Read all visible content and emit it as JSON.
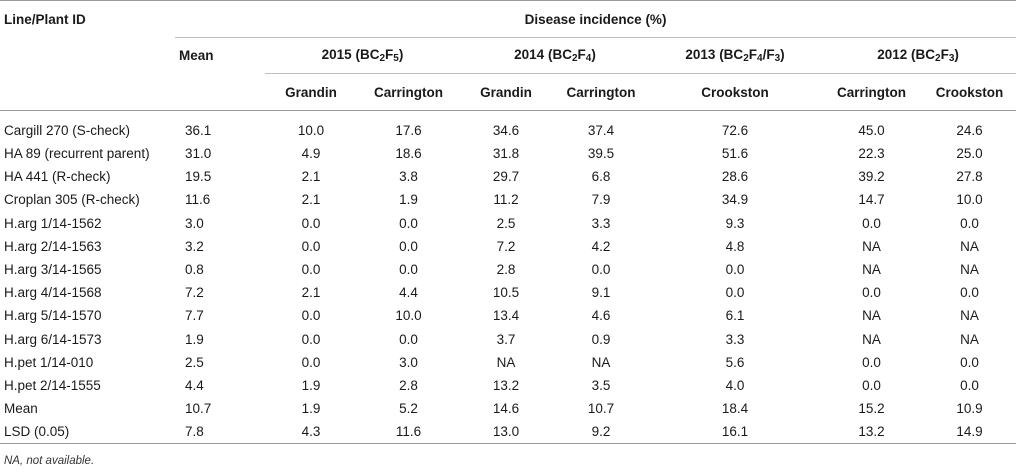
{
  "header": {
    "line_id": "Line/Plant ID",
    "disease_incidence": "Disease incidence (%)",
    "mean": "Mean",
    "groups": [
      {
        "year": "2015",
        "code_pre": "(BC",
        "sub1": "2",
        "mid": "F",
        "sub2": "5",
        "tail": ")"
      },
      {
        "year": "2014",
        "code_pre": "(BC",
        "sub1": "2",
        "mid": "F",
        "sub2": "4",
        "tail": ")"
      },
      {
        "year": "2013",
        "code_pre": "(BC",
        "sub1": "2",
        "mid": "F",
        "sub2": "4",
        "tail": "/F",
        "sub3": "3",
        "tail2": ")"
      },
      {
        "year": "2012",
        "code_pre": "(BC",
        "sub1": "2",
        "mid": "F",
        "sub2": "3",
        "tail": ")"
      }
    ],
    "locations": [
      "Grandin",
      "Carrington",
      "Grandin",
      "Carrington",
      "Crookston",
      "Carrington",
      "Crookston"
    ]
  },
  "rows": [
    {
      "id": "Cargill 270 (S-check)",
      "values": [
        "36.1",
        "10.0",
        "17.6",
        "34.6",
        "37.4",
        "72.6",
        "45.0",
        "24.6"
      ]
    },
    {
      "id": "HA 89 (recurrent parent)",
      "values": [
        "31.0",
        "4.9",
        "18.6",
        "31.8",
        "39.5",
        "51.6",
        "22.3",
        "25.0"
      ]
    },
    {
      "id": "HA 441 (R-check)",
      "values": [
        "19.5",
        "2.1",
        "3.8",
        "29.7",
        "6.8",
        "28.6",
        "39.2",
        "27.8"
      ]
    },
    {
      "id": "Croplan 305 (R-check)",
      "values": [
        "11.6",
        "2.1",
        "1.9",
        "11.2",
        "7.9",
        "34.9",
        "14.7",
        "10.0"
      ]
    },
    {
      "id": "H.arg 1/14-1562",
      "values": [
        "3.0",
        "0.0",
        "0.0",
        "2.5",
        "3.3",
        "9.3",
        "0.0",
        "0.0"
      ]
    },
    {
      "id": "H.arg 2/14-1563",
      "values": [
        "3.2",
        "0.0",
        "0.0",
        "7.2",
        "4.2",
        "4.8",
        "NA",
        "NA"
      ]
    },
    {
      "id": "H.arg 3/14-1565",
      "values": [
        "0.8",
        "0.0",
        "0.0",
        "2.8",
        "0.0",
        "0.0",
        "NA",
        "NA"
      ]
    },
    {
      "id": "H.arg 4/14-1568",
      "values": [
        "7.2",
        "2.1",
        "4.4",
        "10.5",
        "9.1",
        "0.0",
        "0.0",
        "0.0"
      ]
    },
    {
      "id": "H.arg 5/14-1570",
      "values": [
        "7.7",
        "0.0",
        "10.0",
        "13.4",
        "4.6",
        "6.1",
        "NA",
        "NA"
      ]
    },
    {
      "id": "H.arg 6/14-1573",
      "values": [
        "1.9",
        "0.0",
        "0.0",
        "3.7",
        "0.9",
        "3.3",
        "NA",
        "NA"
      ]
    },
    {
      "id": "H.pet 1/14-010",
      "values": [
        "2.5",
        "0.0",
        "3.0",
        "NA",
        "NA",
        "5.6",
        "0.0",
        "0.0"
      ]
    },
    {
      "id": "H.pet 2/14-1555",
      "values": [
        "4.4",
        "1.9",
        "2.8",
        "13.2",
        "3.5",
        "4.0",
        "0.0",
        "0.0"
      ]
    },
    {
      "id": "Mean",
      "values": [
        "10.7",
        "1.9",
        "5.2",
        "14.6",
        "10.7",
        "18.4",
        "15.2",
        "10.9"
      ]
    },
    {
      "id": "LSD (0.05)",
      "values": [
        "7.8",
        "4.3",
        "11.6",
        "13.0",
        "9.2",
        "16.1",
        "13.2",
        "14.9"
      ]
    }
  ],
  "footnote": "NA, not available."
}
